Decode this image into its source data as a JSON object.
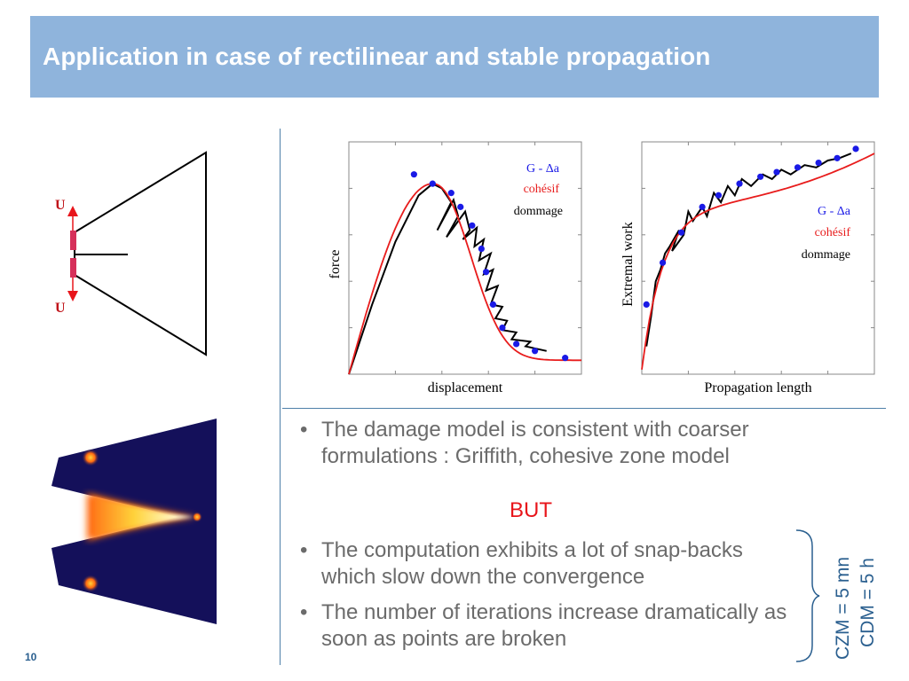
{
  "title": "Application in case of rectilinear and stable propagation",
  "diagram": {
    "label_top": "U",
    "label_bottom": "U"
  },
  "charts": [
    {
      "xlabel": "displacement",
      "ylabel": "force",
      "legend": [
        "G - Δa",
        "cohésif",
        "dommage"
      ]
    },
    {
      "xlabel": "Propagation length",
      "ylabel": "Extremal work",
      "legend": [
        "G - Δa",
        "cohésif",
        "dommage"
      ]
    }
  ],
  "chart_data": [
    {
      "type": "line",
      "title": "",
      "xlabel": "displacement",
      "ylabel": "force",
      "legend_position": "top-right",
      "series": [
        {
          "name": "G - Δa",
          "color": "#1a1ae6",
          "style": "markers",
          "x": [
            0.28,
            0.36,
            0.44,
            0.48,
            0.53,
            0.57,
            0.59,
            0.62,
            0.66,
            0.72,
            0.8,
            0.93
          ],
          "y": [
            0.86,
            0.82,
            0.78,
            0.72,
            0.64,
            0.54,
            0.44,
            0.3,
            0.2,
            0.13,
            0.1,
            0.07
          ]
        },
        {
          "name": "cohésif",
          "color": "#e81c1c",
          "style": "line"
        },
        {
          "name": "dommage",
          "color": "#000000",
          "style": "line"
        }
      ]
    },
    {
      "type": "line",
      "title": "",
      "xlabel": "Propagation length",
      "ylabel": "Extremal work",
      "legend_position": "center-right",
      "series": [
        {
          "name": "G - Δa",
          "color": "#1a1ae6",
          "style": "markers",
          "x": [
            0.02,
            0.09,
            0.17,
            0.26,
            0.33,
            0.42,
            0.51,
            0.58,
            0.67,
            0.76,
            0.84,
            0.92
          ],
          "y": [
            0.3,
            0.48,
            0.61,
            0.72,
            0.77,
            0.82,
            0.85,
            0.87,
            0.89,
            0.91,
            0.93,
            0.97
          ]
        },
        {
          "name": "cohésif",
          "color": "#e81c1c",
          "style": "line"
        },
        {
          "name": "dommage",
          "color": "#000000",
          "style": "line"
        }
      ]
    }
  ],
  "bullets": [
    {
      "text": "The damage model is consistent with coarser formulations : Griffith, cohesive zone model"
    },
    {
      "text": "The computation exhibits a lot of snap-backs which slow down the convergence"
    },
    {
      "text": "The number of iterations increase dramatically as soon as points are broken"
    }
  ],
  "but_label": "BUT",
  "times": {
    "czm": "CZM = 5 mn",
    "cdm": "CDM = 5 h"
  },
  "page_number": "10",
  "colors": {
    "title_bg": "#8fb4dc",
    "accent": "#4e7fa8",
    "red": "#e8151b",
    "blue_text": "#2a5f8f"
  }
}
